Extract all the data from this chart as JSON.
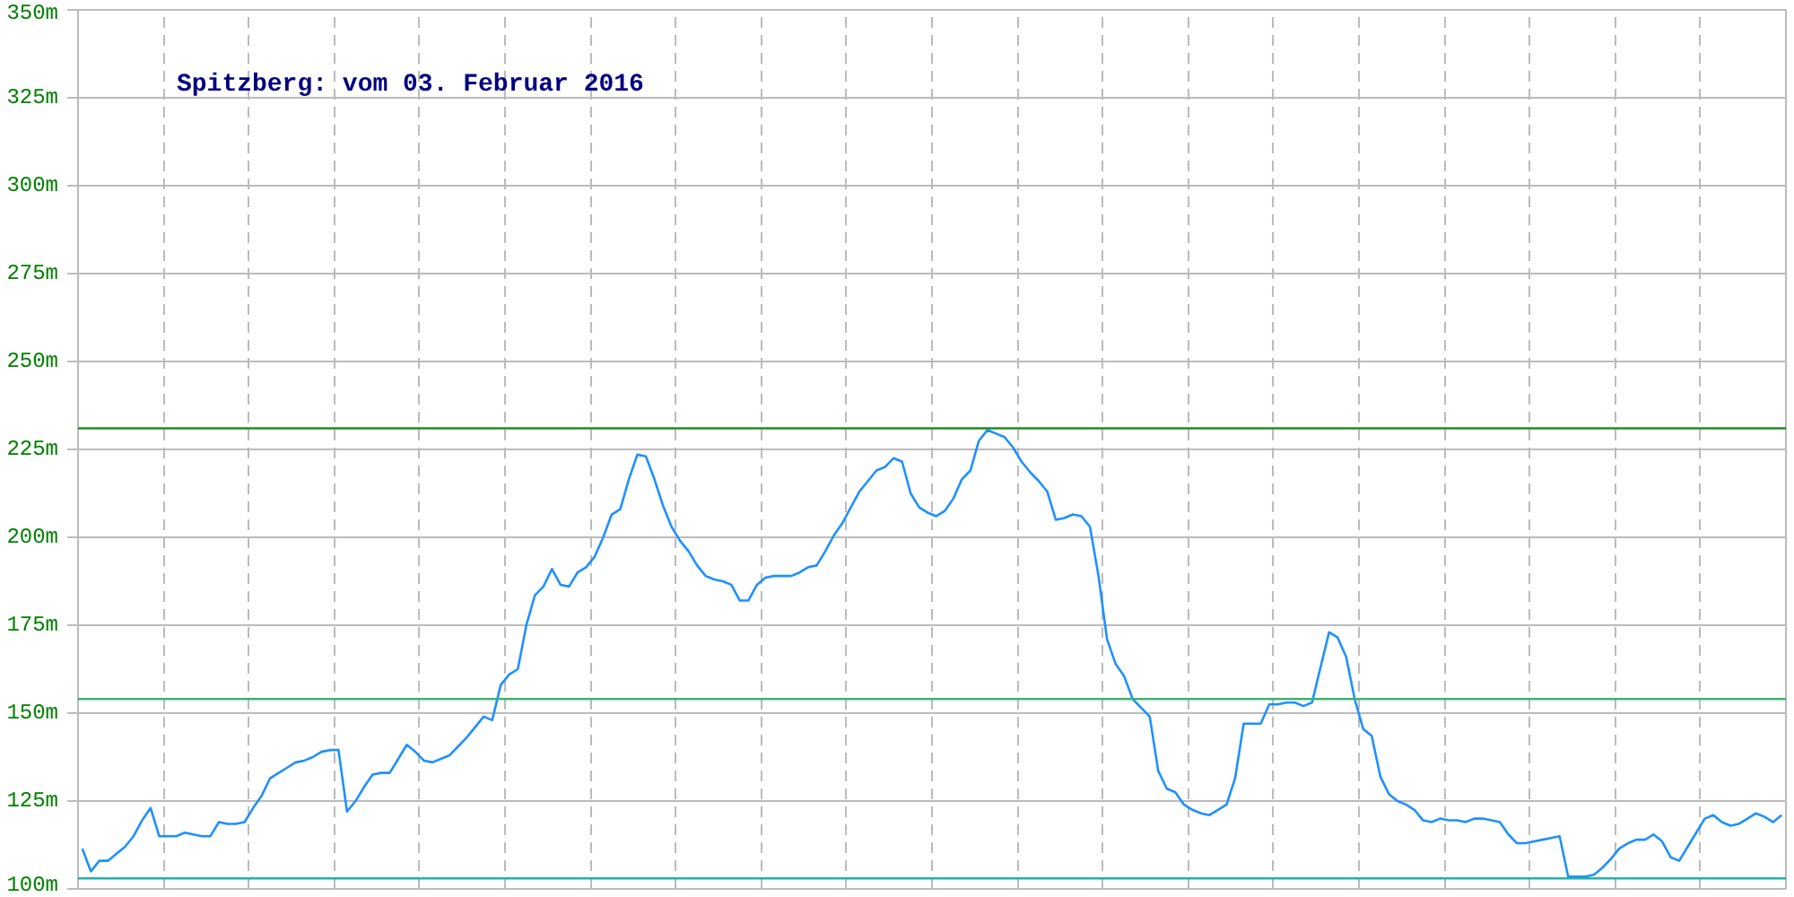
{
  "chart_data": {
    "type": "line",
    "title": "Spitzberg: vom 03. Februar 2016",
    "categories": [
      null,
      null,
      null,
      null,
      null,
      null,
      null,
      null,
      null,
      null,
      null,
      null,
      null,
      null,
      null,
      null,
      null,
      null,
      null,
      null,
      null,
      null,
      null,
      null,
      null,
      null,
      null,
      null,
      null,
      null,
      null,
      null,
      null,
      null,
      null,
      null,
      null,
      null,
      null,
      null,
      null,
      null,
      null,
      null,
      null,
      null,
      null,
      null,
      null,
      null,
      null,
      null,
      null,
      null,
      null,
      null,
      null,
      null,
      null,
      null,
      null,
      null,
      null,
      null,
      null,
      null,
      null,
      null,
      null,
      null,
      null,
      null,
      null,
      null,
      null,
      null,
      null,
      null,
      null,
      null,
      null,
      null,
      null,
      null,
      null,
      null,
      null,
      null,
      null,
      null,
      null,
      null,
      null,
      null,
      null,
      null,
      null,
      null,
      null,
      null,
      null,
      null,
      null,
      null,
      null,
      null,
      null,
      null,
      null,
      null,
      null,
      null,
      null,
      null,
      null,
      null,
      null,
      null,
      null,
      null,
      null,
      null,
      null,
      null,
      null,
      null,
      null,
      null,
      null,
      null,
      null,
      null,
      null,
      null,
      null,
      null,
      null,
      null,
      null,
      null,
      null,
      null,
      null,
      null,
      null,
      null,
      null,
      null,
      null,
      null,
      null,
      null,
      null,
      null,
      null,
      null,
      null,
      null,
      null,
      null,
      null,
      null,
      null,
      null,
      null,
      null,
      null,
      null,
      null,
      null,
      null,
      null,
      null,
      null,
      null,
      null,
      null,
      null,
      null,
      null,
      null,
      null,
      null,
      null,
      null,
      null,
      null,
      null,
      null,
      null,
      null,
      null,
      null,
      null,
      null,
      null,
      null,
      null,
      null,
      null
    ],
    "series": [
      {
        "color": "#1e90ff",
        "values": [
          111.5,
          105,
          108,
          108,
          110,
          112,
          115,
          119.5,
          123,
          115,
          115,
          115,
          116,
          115.5,
          115,
          115,
          119,
          118.5,
          118.5,
          119,
          123,
          126.5,
          131.5,
          133,
          134.5,
          136,
          136.5,
          137.5,
          139,
          139.5,
          139.5,
          122,
          125,
          129,
          132.5,
          133,
          133,
          137,
          141,
          139,
          136.5,
          136,
          137,
          138,
          140.5,
          143,
          146,
          149,
          148,
          158,
          161,
          162.5,
          175,
          183.5,
          186,
          191,
          186.5,
          186,
          190,
          191.5,
          194.5,
          200,
          206.5,
          208,
          216.5,
          223.5,
          223,
          216.5,
          209,
          203,
          199,
          196,
          192,
          189,
          188,
          187.5,
          186.5,
          182,
          182,
          186.5,
          188.5,
          189,
          189,
          189,
          190,
          191.5,
          192,
          196,
          200.5,
          204,
          208.5,
          213,
          216,
          219,
          220,
          222.5,
          221.5,
          212.5,
          208.5,
          207,
          206,
          207.5,
          211,
          216.5,
          219,
          227.5,
          230.5,
          229.5,
          228.5,
          225.5,
          221.5,
          218.5,
          216,
          213,
          205,
          205.5,
          206.5,
          206,
          203,
          189,
          171,
          164,
          160.5,
          154,
          151.5,
          149,
          133.5,
          128.5,
          127.5,
          124,
          122.5,
          121.5,
          121,
          122.5,
          124,
          131.5,
          147,
          147,
          147,
          152.5,
          152.5,
          153,
          153,
          152,
          153,
          163,
          173,
          171.5,
          166,
          154,
          145.5,
          143.5,
          132,
          127,
          125,
          124,
          122.5,
          119.5,
          119,
          120,
          119.5,
          119.5,
          119,
          120,
          120,
          119.5,
          119,
          115.5,
          113,
          113,
          113.5,
          114,
          114.5,
          115,
          103.5,
          103.5,
          103.5,
          104,
          106,
          108.5,
          111.5,
          113,
          114,
          114,
          115.5,
          113.5,
          109,
          108,
          112,
          116,
          120,
          121,
          119,
          118,
          118.5,
          120,
          121.5,
          120.5,
          119,
          121
        ]
      }
    ],
    "ylim": [
      100,
      350
    ],
    "yticks": [
      {
        "value": 100,
        "label": "100m"
      },
      {
        "value": 125,
        "label": "125m"
      },
      {
        "value": 150,
        "label": "150m"
      },
      {
        "value": 175,
        "label": "175m"
      },
      {
        "value": 200,
        "label": "200m"
      },
      {
        "value": 225,
        "label": "225m"
      },
      {
        "value": 250,
        "label": "250m"
      },
      {
        "value": 275,
        "label": "275m"
      },
      {
        "value": 300,
        "label": "300m"
      },
      {
        "value": 325,
        "label": "325m"
      },
      {
        "value": 350,
        "label": "350m"
      }
    ],
    "tick_labels": "y",
    "grid": true,
    "ref_lines": [
      {
        "axis": "y",
        "value": 231,
        "color": "#228b22"
      },
      {
        "axis": "y",
        "value": 154,
        "color": "#3cb371"
      },
      {
        "axis": "y",
        "value": 103,
        "color": "#20b2aa"
      }
    ]
  }
}
